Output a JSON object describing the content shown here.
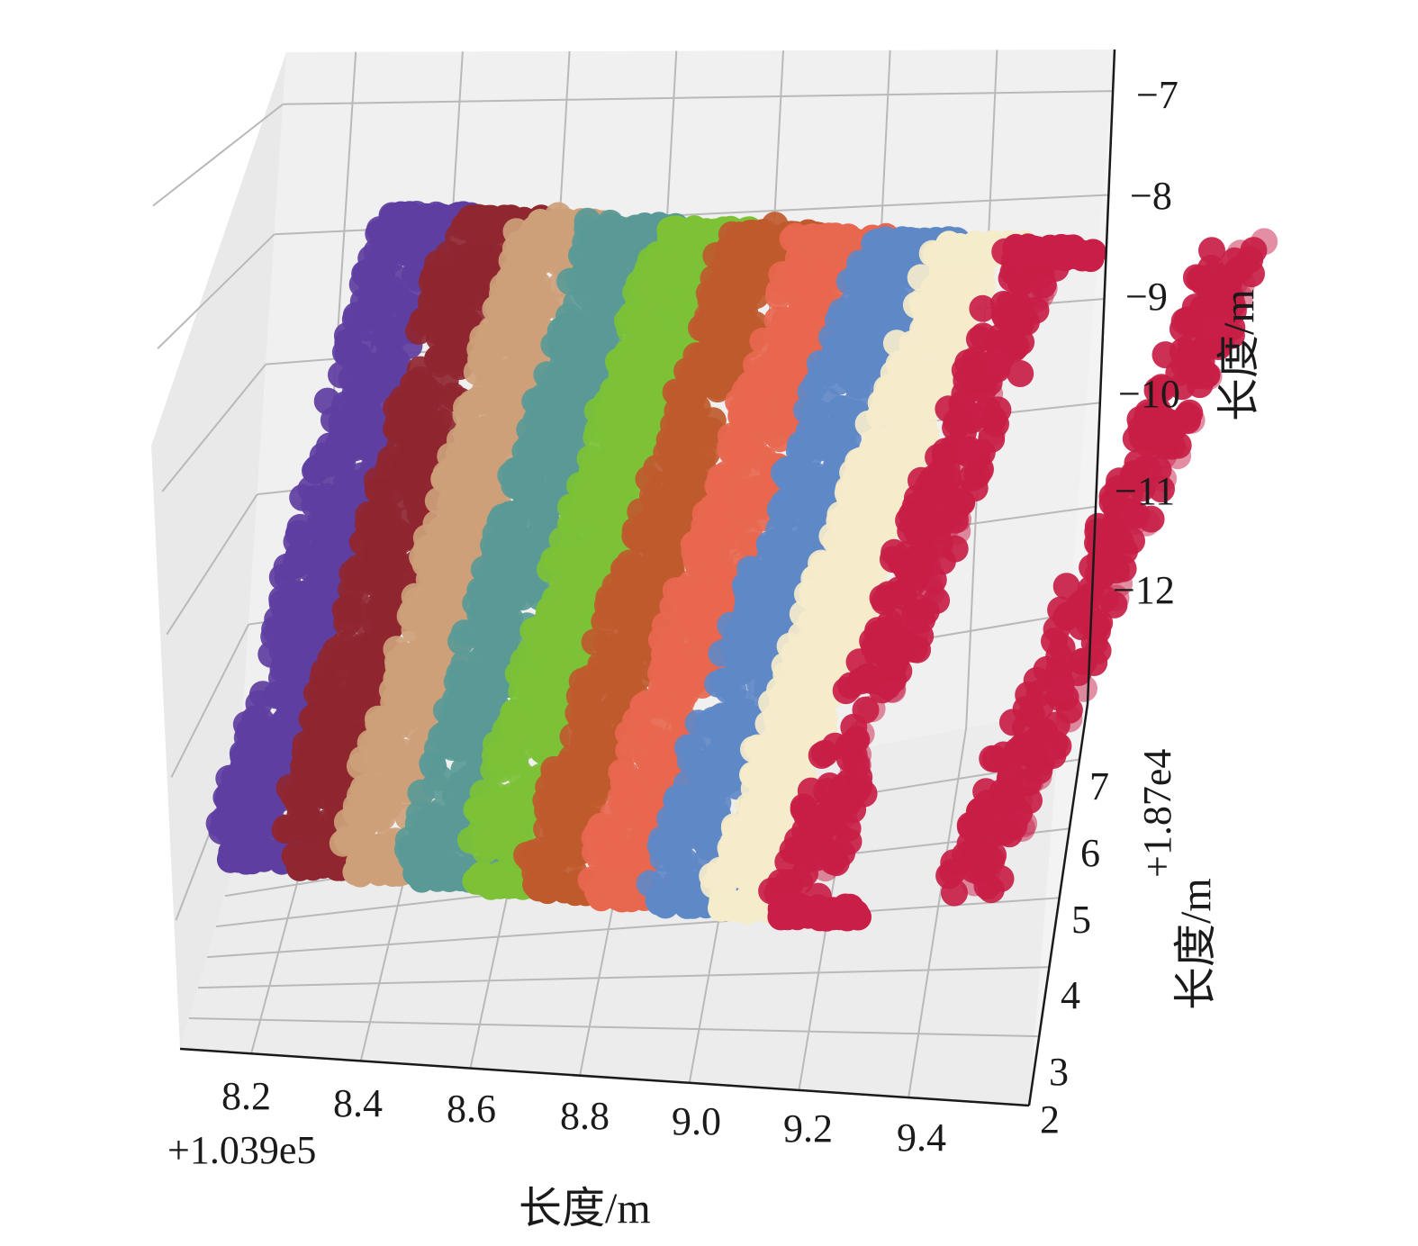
{
  "chart_data": {
    "type": "scatter",
    "projection": "3d",
    "title": "",
    "xlabel": "长度/m",
    "ylabel": "长度/m",
    "zlabel": "长度/m",
    "x_offset_text": "+1.039e5",
    "y_offset_text": "+1.87e4",
    "x_ticks": [
      "8.2",
      "8.4",
      "8.6",
      "8.8",
      "9.0",
      "9.2",
      "9.4"
    ],
    "y_ticks": [
      "2",
      "3",
      "4",
      "5",
      "6",
      "7"
    ],
    "z_ticks": [
      "−7",
      "−8",
      "−9",
      "−10",
      "−11",
      "−12"
    ],
    "xlim": [
      8.07,
      9.62
    ],
    "ylim": [
      2,
      7.8
    ],
    "zlim": [
      -12.9,
      -6.6
    ],
    "grid": true,
    "legend": "none",
    "pane_color": "#f0f0f0",
    "rings": [
      {
        "x_center": 8.32,
        "color": "#5e3ea1"
      },
      {
        "x_center": 8.44,
        "color": "#8f2630"
      },
      {
        "x_center": 8.55,
        "color": "#cda07a"
      },
      {
        "x_center": 8.65,
        "color": "#5a9a96"
      },
      {
        "x_center": 8.75,
        "color": "#7cc136"
      },
      {
        "x_center": 8.87,
        "color": "#bf5a2c"
      },
      {
        "x_center": 8.97,
        "color": "#e8674f"
      },
      {
        "x_center": 9.08,
        "color": "#5f88c7"
      },
      {
        "x_center": 9.19,
        "color": "#f5eccb"
      },
      {
        "x_center": 9.3,
        "color": "#c81e47"
      }
    ],
    "ring_y_range": [
      3.0,
      7.0
    ],
    "ring_z_range": [
      -12.5,
      -8.1
    ]
  }
}
